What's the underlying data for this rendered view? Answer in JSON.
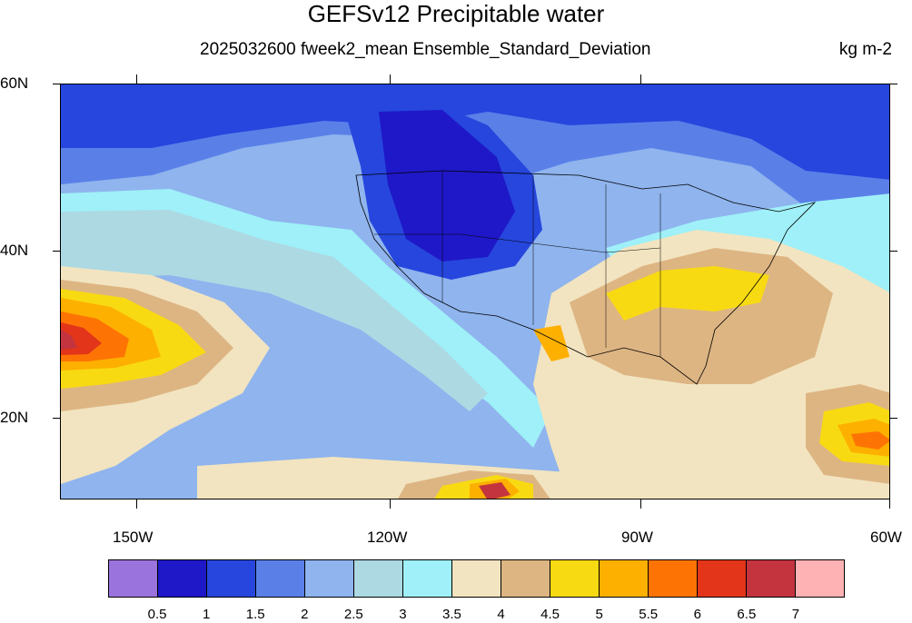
{
  "header": {
    "title": "GEFSv12 Precipitable water",
    "subtitle": "2025032600 fweek2_mean Ensemble_Standard_Deviation",
    "units": "kg m-2"
  },
  "map": {
    "lat_labels": [
      "60N",
      "40N",
      "20N"
    ],
    "lon_labels": [
      "150W",
      "120W",
      "90W",
      "60W"
    ]
  },
  "colorbar": {
    "colors": [
      "#9a74dc",
      "#1f18c8",
      "#2646dd",
      "#5a80e8",
      "#8fb4ee",
      "#add9e3",
      "#9ff0f8",
      "#f2e4c0",
      "#ddb583",
      "#f8da12",
      "#fdb000",
      "#fe7404",
      "#e2351a",
      "#c3343e",
      "#feb2b4"
    ],
    "labels": [
      "0.5",
      "1",
      "1.5",
      "2",
      "2.5",
      "3",
      "3.5",
      "4",
      "4.5",
      "5",
      "5.5",
      "6",
      "6.5",
      "7"
    ]
  }
}
